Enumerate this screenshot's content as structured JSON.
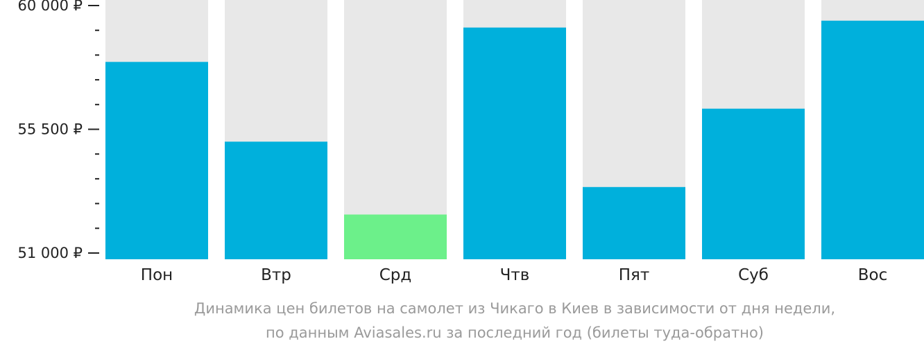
{
  "chart_data": {
    "type": "bar",
    "categories": [
      "Пон",
      "Втр",
      "Срд",
      "Чтв",
      "Пят",
      "Суб",
      "Вос"
    ],
    "values": [
      57950,
      55050,
      52400,
      59200,
      53400,
      56250,
      59450
    ],
    "lowest_index": 2,
    "ylim": [
      51000,
      60000
    ],
    "yticks_major": [
      {
        "value": 60000,
        "label": "60 000 ₽"
      },
      {
        "value": 55500,
        "label": "55 500 ₽"
      },
      {
        "value": 51000,
        "label": "51 000 ₽"
      }
    ],
    "yticks_minor": [
      51900,
      52800,
      53700,
      54600,
      56400,
      57300,
      58200,
      59100
    ],
    "colors": {
      "bar": "#00b0dc",
      "bar_lowest": "#6cf08a",
      "background_column": "#e8e8e8",
      "axis": "#222222"
    }
  },
  "caption": {
    "line1": "Динамика цен билетов на самолет из Чикаго в Киев в зависимости от дня недели,",
    "line2": "по данным Aviasales.ru за последний год (билеты туда-обратно)"
  }
}
